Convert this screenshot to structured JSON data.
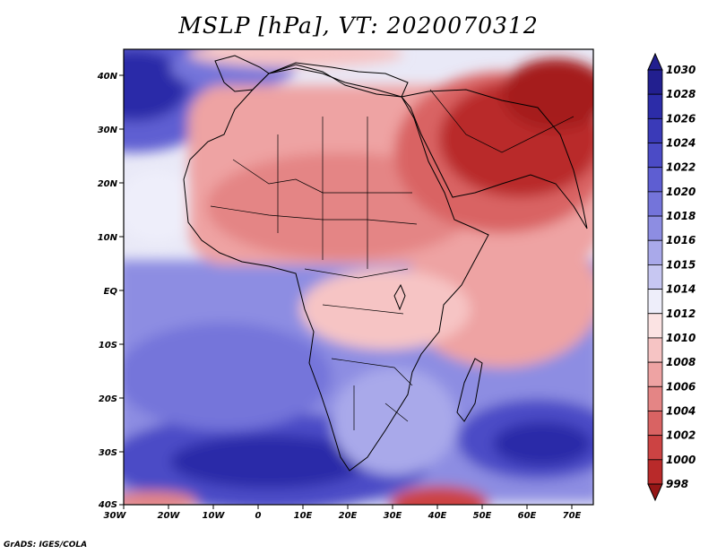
{
  "title": "MSLP [hPa], VT: 2020070312",
  "credit": "GrADS: IGES/COLA",
  "lon_labels": [
    "30W",
    "20W",
    "10W",
    "0",
    "10E",
    "20E",
    "30E",
    "40E",
    "50E",
    "60E",
    "70E"
  ],
  "lat_labels": [
    "40N",
    "30N",
    "20N",
    "10N",
    "EQ",
    "10S",
    "20S",
    "30S",
    "40S"
  ],
  "colorbar": {
    "labels": [
      "1030",
      "1028",
      "1026",
      "1024",
      "1022",
      "1020",
      "1018",
      "1016",
      "1015",
      "1014",
      "1012",
      "1010",
      "1008",
      "1006",
      "1004",
      "1002",
      "1000",
      "998"
    ],
    "colors": [
      "#221f8f",
      "#2c2ca8",
      "#3a3ab8",
      "#4b4bc6",
      "#5e5ed2",
      "#7474da",
      "#8d8de2",
      "#a9a9ea",
      "#c7c7f2",
      "#eeeefa",
      "#fbe3e3",
      "#f6c4c4",
      "#eea3a3",
      "#e48585",
      "#d96363",
      "#cc4343",
      "#b92a2a",
      "#a51c1c",
      "#951616"
    ]
  },
  "map_data": {
    "projection": "lat-lon",
    "lon_range": [
      -30,
      75
    ],
    "lat_range": [
      -40,
      45
    ],
    "variable": "MSLP",
    "units": "hPa",
    "valid_time": "2020070312"
  }
}
